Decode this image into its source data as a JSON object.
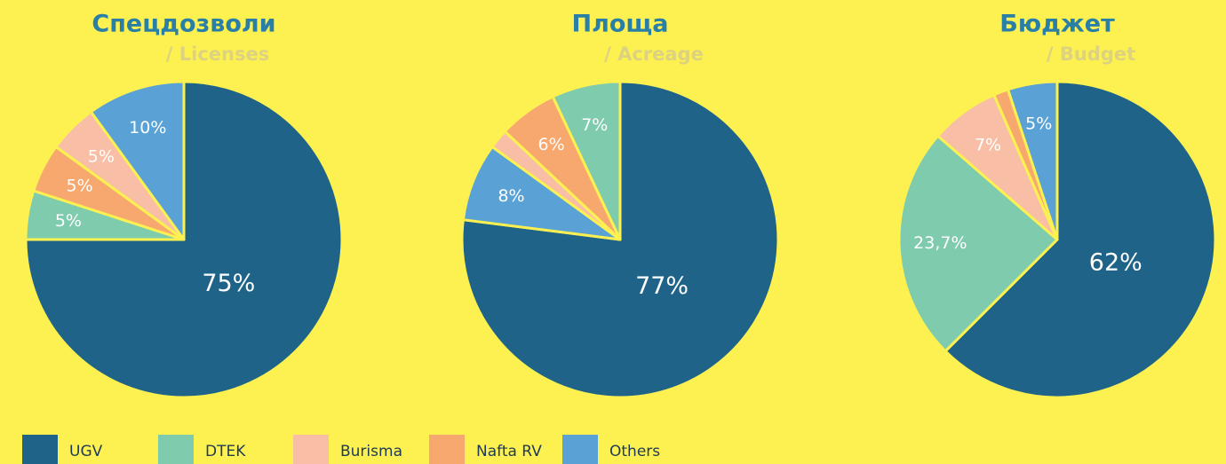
{
  "legend": {
    "categories": [
      "UGV",
      "DTEK",
      "Burisma",
      "Nafta RV",
      "Others"
    ],
    "colors": [
      "#1f6488",
      "#7fcbad",
      "#f9bfa6",
      "#f7a86f",
      "#5aa2d6"
    ]
  },
  "chart_data": [
    {
      "type": "pie",
      "title": "Спецдозволи",
      "subtitle": "/ Licenses",
      "categories": [
        "UGV",
        "DTEK",
        "Nafta RV",
        "Burisma",
        "Others"
      ],
      "values": [
        75,
        5,
        5,
        5,
        10
      ],
      "value_labels": [
        "75%",
        "5%",
        "5%",
        "5%",
        "10%"
      ]
    },
    {
      "type": "pie",
      "title": "Площа",
      "subtitle": "/ Acreage",
      "categories": [
        "UGV",
        "Others",
        "Burisma",
        "Nafta RV",
        "DTEK"
      ],
      "values": [
        77,
        8,
        2,
        6,
        7
      ],
      "value_labels": [
        "77%",
        "8%",
        null,
        "6%",
        "7%"
      ]
    },
    {
      "type": "pie",
      "title": "Бюджет",
      "subtitle": "/ Budget",
      "categories": [
        "UGV",
        "DTEK",
        "Burisma",
        "Nafta RV",
        "Others"
      ],
      "values": [
        62,
        23.7,
        7,
        1.5,
        5
      ],
      "value_labels": [
        "62%",
        "23,7%",
        "7%",
        null,
        "5%"
      ]
    }
  ]
}
